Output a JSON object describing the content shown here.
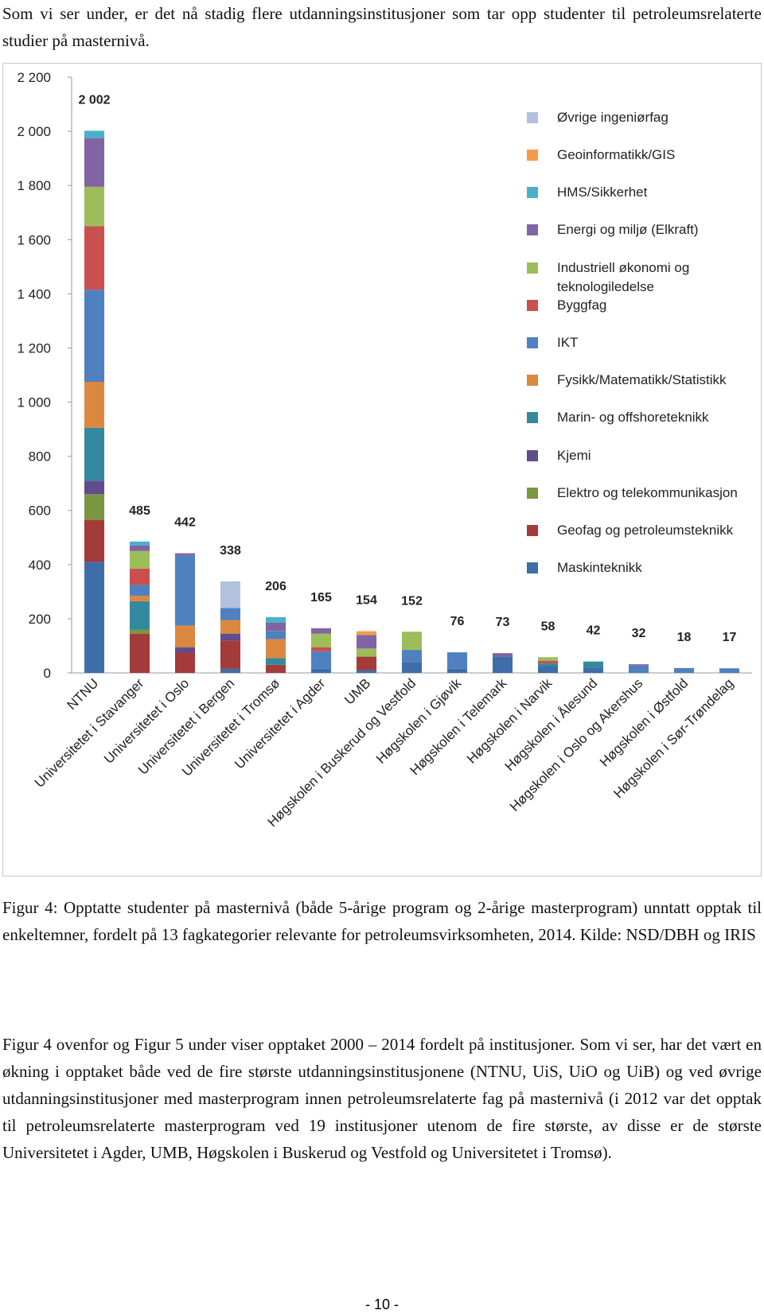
{
  "intro": "Som vi ser under, er det nå stadig flere utdanningsinstitusjoner som tar opp studenter til petroleumsrelaterte studier på masternivå.",
  "chart_data": {
    "type": "stacked-bar",
    "categories": [
      "NTNU",
      "Universitetet i Stavanger",
      "Universitetet i Oslo",
      "Universitetet i Bergen",
      "Universitetet i Tromsø",
      "Universitetet i Agder",
      "UMB",
      "Høgskolen i Buskerud og Vestfold",
      "Høgskolen i Gjøvik",
      "Høgskolen i Telemark",
      "Høgskolen i Narvik",
      "Høgskolen i Ålesund",
      "Høgskolen i Oslo og Akershus",
      "Høgskolen i Østfold",
      "Høgskolen i Sør-Trøndelag"
    ],
    "series": [
      {
        "name": "Maskinteknikk",
        "color": "#3d6ea8",
        "values": [
          410,
          0,
          0,
          15,
          0,
          15,
          10,
          40,
          15,
          60,
          25,
          20,
          0,
          0,
          0
        ]
      },
      {
        "name": "Geofag og petroleumsteknikk",
        "color": "#a33b3a",
        "values": [
          155,
          145,
          75,
          105,
          30,
          0,
          50,
          0,
          0,
          0,
          0,
          0,
          0,
          0,
          0
        ]
      },
      {
        "name": "Elektro og telekommunikasjon",
        "color": "#7b9640",
        "values": [
          95,
          15,
          0,
          0,
          0,
          0,
          0,
          0,
          0,
          0,
          0,
          0,
          0,
          0,
          0
        ]
      },
      {
        "name": "Kjemi",
        "color": "#614c8c",
        "values": [
          50,
          0,
          20,
          25,
          0,
          0,
          0,
          0,
          0,
          0,
          0,
          0,
          0,
          0,
          0
        ]
      },
      {
        "name": "Marin- og offshoreteknikk",
        "color": "#34899e",
        "values": [
          195,
          105,
          0,
          0,
          25,
          0,
          0,
          0,
          0,
          0,
          10,
          22,
          0,
          0,
          0
        ]
      },
      {
        "name": "Fysikk/Matematikk/Statistikk",
        "color": "#db8740",
        "values": [
          170,
          20,
          80,
          50,
          70,
          0,
          0,
          0,
          0,
          0,
          0,
          0,
          0,
          0,
          0
        ]
      },
      {
        "name": "IKT",
        "color": "#4f81c0",
        "values": [
          340,
          40,
          260,
          45,
          30,
          65,
          0,
          45,
          61,
          0,
          0,
          0,
          27,
          18,
          17
        ]
      },
      {
        "name": "Byggfag",
        "color": "#c9504e",
        "values": [
          235,
          60,
          0,
          0,
          0,
          15,
          0,
          0,
          0,
          0,
          10,
          0,
          0,
          0,
          0
        ]
      },
      {
        "name": "Industriell økonomi og teknologiledelse",
        "color": "#9dbd5b",
        "values": [
          145,
          65,
          0,
          0,
          0,
          50,
          30,
          67,
          0,
          0,
          13,
          0,
          0,
          0,
          0
        ]
      },
      {
        "name": "Energi og miljø (Elkraft)",
        "color": "#8165a3",
        "values": [
          180,
          20,
          7,
          0,
          30,
          20,
          50,
          0,
          0,
          13,
          0,
          0,
          5,
          0,
          0
        ]
      },
      {
        "name": "HMS/Sikkerhet",
        "color": "#4bb0c8",
        "values": [
          27,
          15,
          0,
          0,
          21,
          0,
          0,
          0,
          0,
          0,
          0,
          0,
          0,
          0,
          0
        ]
      },
      {
        "name": "Geoinformatikk/GIS",
        "color": "#f79a4a",
        "values": [
          0,
          0,
          0,
          0,
          0,
          0,
          14,
          0,
          0,
          0,
          0,
          0,
          0,
          0,
          0
        ]
      },
      {
        "name": "Øvrige ingeniørfag",
        "color": "#b2c2de",
        "values": [
          0,
          0,
          0,
          98,
          0,
          0,
          0,
          0,
          0,
          0,
          0,
          0,
          0,
          0,
          0
        ]
      }
    ],
    "totals": {
      "values": [
        2002,
        485,
        442,
        338,
        206,
        165,
        154,
        152,
        76,
        73,
        58,
        42,
        32,
        18,
        17
      ],
      "value_labels": [
        "2 002",
        "485",
        "442",
        "338",
        "206",
        "165",
        "154",
        "152",
        "76",
        "73",
        "58",
        "42",
        "32",
        "18",
        "17"
      ]
    },
    "ylim": [
      0,
      2200
    ],
    "yticks": [
      0,
      200,
      400,
      600,
      800,
      {
        "value": 1000,
        "label": "1 000"
      },
      {
        "value": 1200,
        "label": "1 200"
      },
      {
        "value": 1400,
        "label": "1 400"
      },
      {
        "value": 1600,
        "label": "1 600"
      },
      {
        "value": 1800,
        "label": "1 800"
      },
      {
        "value": 2000,
        "label": "2 000"
      },
      {
        "value": 2200,
        "label": "2 200"
      }
    ],
    "grid": false
  },
  "caption": "Figur 4: Opptatte studenter på masternivå (både 5-årige program og 2-årige masterprogram) unntatt opptak til enkeltemner, fordelt på 13 fagkategorier relevante for petroleumsvirksomheten, 2014. Kilde: NSD/DBH og IRIS",
  "body": "Figur 4 ovenfor og Figur 5 under viser opptaket 2000 – 2014 fordelt på institusjoner. Som vi ser, har det vært en økning i opptaket både ved de fire største utdanningsinstitusjonene (NTNU, UiS, UiO og UiB) og ved øvrige utdanningsinstitusjoner med masterprogram innen petroleumsrelaterte fag på masternivå (i 2012 var det opptak til petroleumsrelaterte masterprogram ved 19 institusjoner utenom de fire største, av disse er de største Universitetet i Agder, UMB, Høgskolen i Buskerud og Vestfold og Universitetet i Tromsø).",
  "page_number": "- 10 -"
}
